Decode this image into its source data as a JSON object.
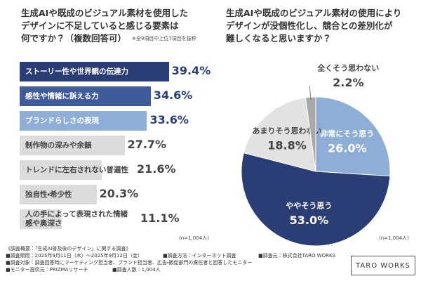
{
  "chart_data": [
    {
      "type": "hbar",
      "title": [
        "生成AIや既成のビジュアル素材を使用した",
        "デザインに不足していると感じる要素は",
        "何ですか？（複数回答可）"
      ],
      "note": "※全9項目中上位7項目を抜粋",
      "sample": "(n=1,004人)",
      "categories": [
        "ストーリー性や世界観の伝達力",
        "感性や情緒に訴える力",
        "ブランドらしさの表現",
        "制作物の深みや余韻",
        "トレンドに左右されない普遍性",
        "独自性・希少性",
        "人の手によって表現された情緒感や奥深さ"
      ],
      "values": [
        39.4,
        34.6,
        33.6,
        27.7,
        21.6,
        20.3,
        11.1
      ],
      "value_labels": [
        "39.4%",
        "34.6%",
        "33.6%",
        "27.7%",
        "21.6%",
        "20.3%",
        "11.1%"
      ],
      "colors": [
        "#2b3d75",
        "#3f5b9c",
        "#8eaed6",
        "#dcdcdc",
        "#dcdcdc",
        "#dcdcdc",
        "#dcdcdc"
      ]
    },
    {
      "type": "pie",
      "title": [
        "生成AIや既成のビジュアル素材の使用により",
        "デザインが没個性化し、競合との差別化が",
        "難しくなると思いますか？"
      ],
      "sample": "(n=1,004人)",
      "categories": [
        "非常にそう思う",
        "ややそう思う",
        "あまりそう思わない",
        "全くそう思わない"
      ],
      "values": [
        26.0,
        53.0,
        18.8,
        2.2
      ],
      "value_labels": [
        "26.0%",
        "53.0%",
        "18.8%",
        "2.2%"
      ],
      "colors": [
        "#8eaed6",
        "#2b3d75",
        "#e2e2e2",
        "#a8a8a8"
      ]
    }
  ],
  "footer": {
    "heading": "《調査概要：「生成AI普及後のデザイン」に関する調査》",
    "items": [
      "■調査期間：2025年9月11日（木）～2025年9月12日（金）",
      "■調査方法：インターネット調査",
      "■調査元：株式会社TARO WORKS",
      "■調査対象：調査回答時にマーケティング担当者、ブランド担当者、広告・販促部門の責任者と回答したモニター",
      "■モニター提供元：PRIZMAリサーチ",
      "■調査人数：1,004人"
    ],
    "brand": "TARO WORKS"
  }
}
